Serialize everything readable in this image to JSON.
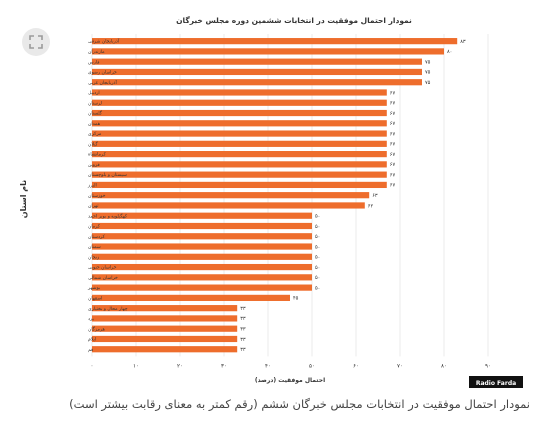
{
  "expand_icon": "expand-icon",
  "caption": "نمودار احتمال موفقیت در انتخابات مجلس خبرگان ششم (رقم کمتر به معنای رقابت بیشتر است)",
  "brand": {
    "logo_text": "Radio Farda"
  },
  "colors": {
    "bar": "#ee6d2c",
    "grid": "#e3e3e3",
    "text": "#333333",
    "logo_bg": "#111111"
  },
  "chart_data": {
    "type": "bar",
    "orientation": "horizontal",
    "title": "نمودار احتمال موفقیت در انتخابات ششمین دوره مجلس خبرگان",
    "xlabel": "احتمال موفقیت (درصد)",
    "ylabel": "نام استان",
    "xlim": [
      0,
      90
    ],
    "xticks": [
      0,
      10,
      20,
      30,
      40,
      50,
      60,
      70,
      80,
      90
    ],
    "xtick_labels": [
      "۰",
      "۱۰",
      "۲۰",
      "۳۰",
      "۴۰",
      "۵۰",
      "۶۰",
      "۷۰",
      "۸۰",
      "۹۰"
    ],
    "grid": true,
    "categories": [
      "آذربایجان شرقی",
      "مازندران",
      "فارس",
      "خراسان رضوی",
      "آذربایجان غربی",
      "اردبیل",
      "لرستان",
      "گلستان",
      "همدان",
      "مرکزی",
      "گیلان",
      "کرمانشاه",
      "قزوین",
      "سیستان و بلوچستان",
      "البرز",
      "خوزستان",
      "تهران",
      "کهگیلویه و بویر احمد",
      "کرمان",
      "کردستان",
      "سمنان",
      "زنجان",
      "خراسان جنوبی",
      "خراسان شمالی",
      "بوشهر",
      "اصفهان",
      "چهار محال و بختیاری",
      "یزد",
      "هرمزگان",
      "ایلام",
      "قم"
    ],
    "values": [
      83,
      80,
      75,
      75,
      75,
      67,
      67,
      67,
      67,
      67,
      67,
      67,
      67,
      67,
      67,
      63,
      62,
      50,
      50,
      50,
      50,
      50,
      50,
      50,
      50,
      45,
      33,
      33,
      33,
      33,
      33
    ],
    "value_labels": [
      "۸۳",
      "۸۰",
      "۷۵",
      "۷۵",
      "۷۵",
      "۶۷",
      "۶۷",
      "۶۷",
      "۶۷",
      "۶۷",
      "۶۷",
      "۶۷",
      "۶۷",
      "۶۷",
      "۶۷",
      "۶۳",
      "۶۲",
      "۵۰",
      "۵۰",
      "۵۰",
      "۵۰",
      "۵۰",
      "۵۰",
      "۵۰",
      "۵۰",
      "۴۵",
      "۳۳",
      "۳۳",
      "۳۳",
      "۳۳",
      "۳۳"
    ]
  }
}
